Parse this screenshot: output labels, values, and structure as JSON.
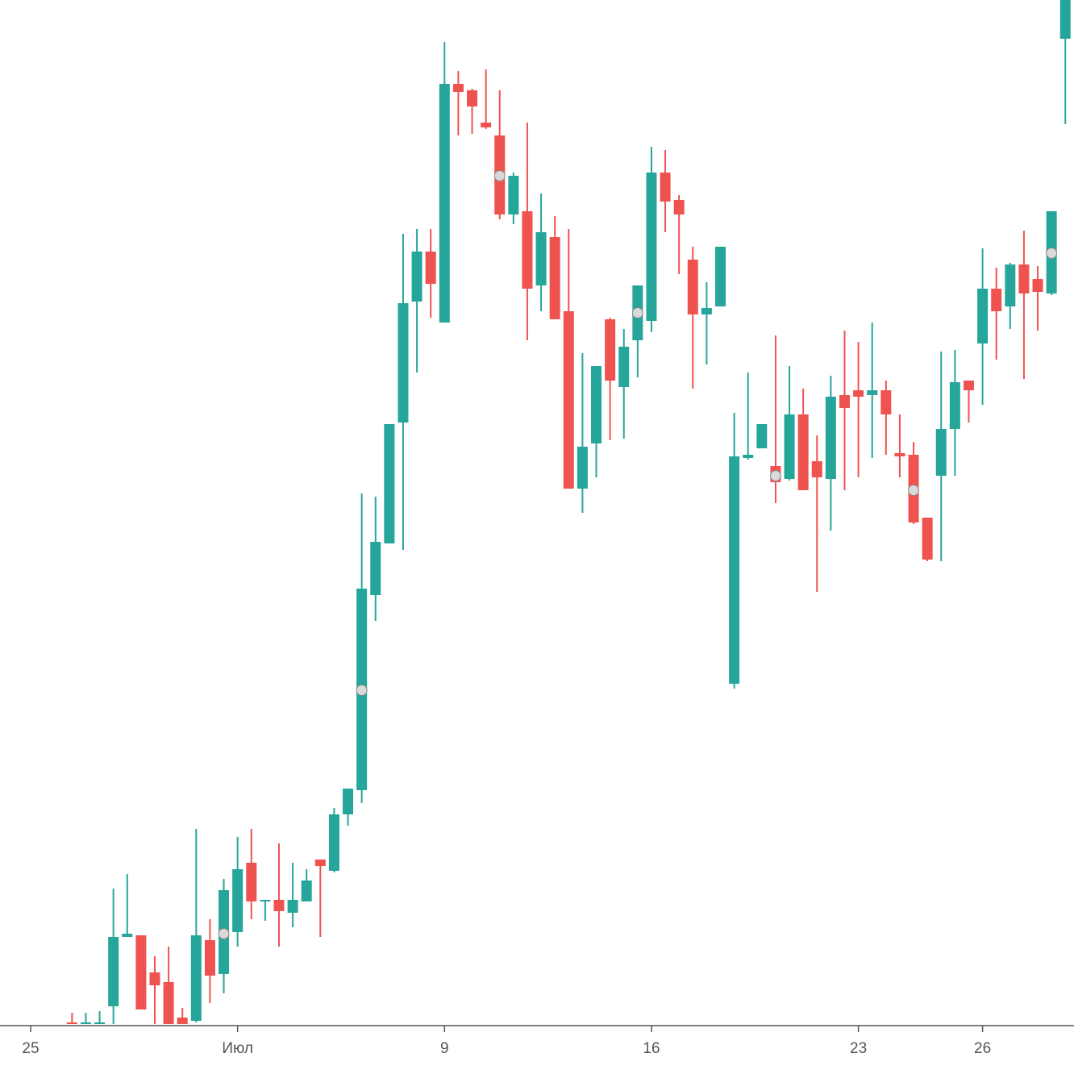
{
  "chart_data": {
    "type": "candlestick",
    "categories": [
      "25",
      null,
      null,
      null,
      null,
      null,
      null,
      null,
      null,
      null,
      null,
      null,
      null,
      null,
      null,
      "Июл",
      null,
      null,
      null,
      null,
      null,
      null,
      null,
      null,
      null,
      null,
      null,
      null,
      null,
      null,
      "9",
      null,
      null,
      null,
      null,
      null,
      null,
      null,
      null,
      null,
      null,
      null,
      null,
      null,
      null,
      "16",
      null,
      null,
      null,
      null,
      null,
      null,
      null,
      null,
      null,
      null,
      null,
      null,
      null,
      null,
      "23",
      null,
      null,
      null,
      null,
      null,
      null,
      null,
      null,
      "26",
      null,
      null,
      null,
      null,
      null,
      null
    ],
    "open": [
      null,
      null,
      null,
      4,
      2,
      2,
      24,
      110,
      112,
      66,
      54,
      10,
      6,
      106,
      64,
      116,
      202,
      154,
      156,
      140,
      154,
      206,
      192,
      262,
      292,
      534,
      598,
      748,
      898,
      960,
      872,
      1168,
      1160,
      1120,
      1104,
      1006,
      1010,
      918,
      978,
      886,
      666,
      722,
      876,
      792,
      850,
      874,
      1058,
      1024,
      950,
      882,
      892,
      424,
      704,
      716,
      694,
      678,
      758,
      700,
      678,
      782,
      788,
      782,
      788,
      710,
      708,
      630,
      682,
      740,
      800,
      846,
      914,
      892,
      944,
      926,
      908,
      1224
    ],
    "high": [
      null,
      null,
      null,
      16,
      16,
      18,
      170,
      188,
      112,
      86,
      98,
      22,
      244,
      132,
      182,
      234,
      244,
      156,
      226,
      202,
      194,
      206,
      270,
      294,
      660,
      656,
      746,
      982,
      988,
      988,
      1220,
      1184,
      1162,
      1186,
      1160,
      1058,
      1120,
      1032,
      1004,
      988,
      834,
      818,
      878,
      864,
      918,
      1090,
      1086,
      1030,
      966,
      922,
      966,
      760,
      810,
      746,
      856,
      818,
      790,
      732,
      806,
      862,
      848,
      872,
      800,
      758,
      724,
      630,
      836,
      838,
      800,
      964,
      940,
      946,
      986,
      942,
      1010,
      1272
    ],
    "low": [
      null,
      null,
      null,
      2,
      2,
      2,
      2,
      110,
      20,
      2,
      2,
      2,
      4,
      28,
      40,
      98,
      132,
      130,
      98,
      122,
      154,
      110,
      190,
      248,
      276,
      502,
      598,
      590,
      810,
      878,
      872,
      1104,
      1106,
      1112,
      1000,
      994,
      850,
      886,
      876,
      666,
      636,
      680,
      726,
      728,
      804,
      860,
      984,
      932,
      790,
      820,
      892,
      418,
      702,
      716,
      648,
      676,
      664,
      538,
      614,
      664,
      680,
      704,
      708,
      680,
      622,
      576,
      576,
      682,
      748,
      770,
      826,
      864,
      802,
      862,
      906,
      1118
    ],
    "close": [
      null,
      null,
      null,
      2,
      4,
      4,
      110,
      114,
      20,
      50,
      2,
      2,
      112,
      62,
      168,
      194,
      154,
      156,
      142,
      156,
      180,
      198,
      262,
      294,
      542,
      600,
      746,
      896,
      960,
      920,
      1168,
      1158,
      1140,
      1114,
      1006,
      1054,
      914,
      984,
      876,
      666,
      718,
      818,
      800,
      842,
      918,
      1058,
      1022,
      1006,
      882,
      890,
      966,
      706,
      708,
      746,
      674,
      758,
      664,
      680,
      780,
      766,
      780,
      788,
      758,
      706,
      624,
      578,
      740,
      798,
      788,
      914,
      886,
      944,
      908,
      910,
      1010,
      1272
    ],
    "markers": [
      null,
      null,
      null,
      null,
      null,
      null,
      null,
      null,
      null,
      null,
      null,
      null,
      null,
      null,
      114,
      null,
      null,
      null,
      null,
      null,
      null,
      null,
      null,
      null,
      416,
      null,
      null,
      null,
      null,
      null,
      null,
      null,
      null,
      null,
      1054,
      null,
      null,
      null,
      null,
      null,
      null,
      null,
      null,
      null,
      884,
      null,
      null,
      null,
      null,
      null,
      null,
      null,
      null,
      null,
      682,
      null,
      null,
      null,
      null,
      null,
      null,
      null,
      null,
      null,
      664,
      null,
      null,
      null,
      null,
      null,
      null,
      null,
      null,
      null,
      958,
      null
    ],
    "up_color": "#26a69a",
    "down_color": "#ef5350",
    "marker_color": "#d9d9d9",
    "ylim": [
      0,
      1272
    ]
  }
}
